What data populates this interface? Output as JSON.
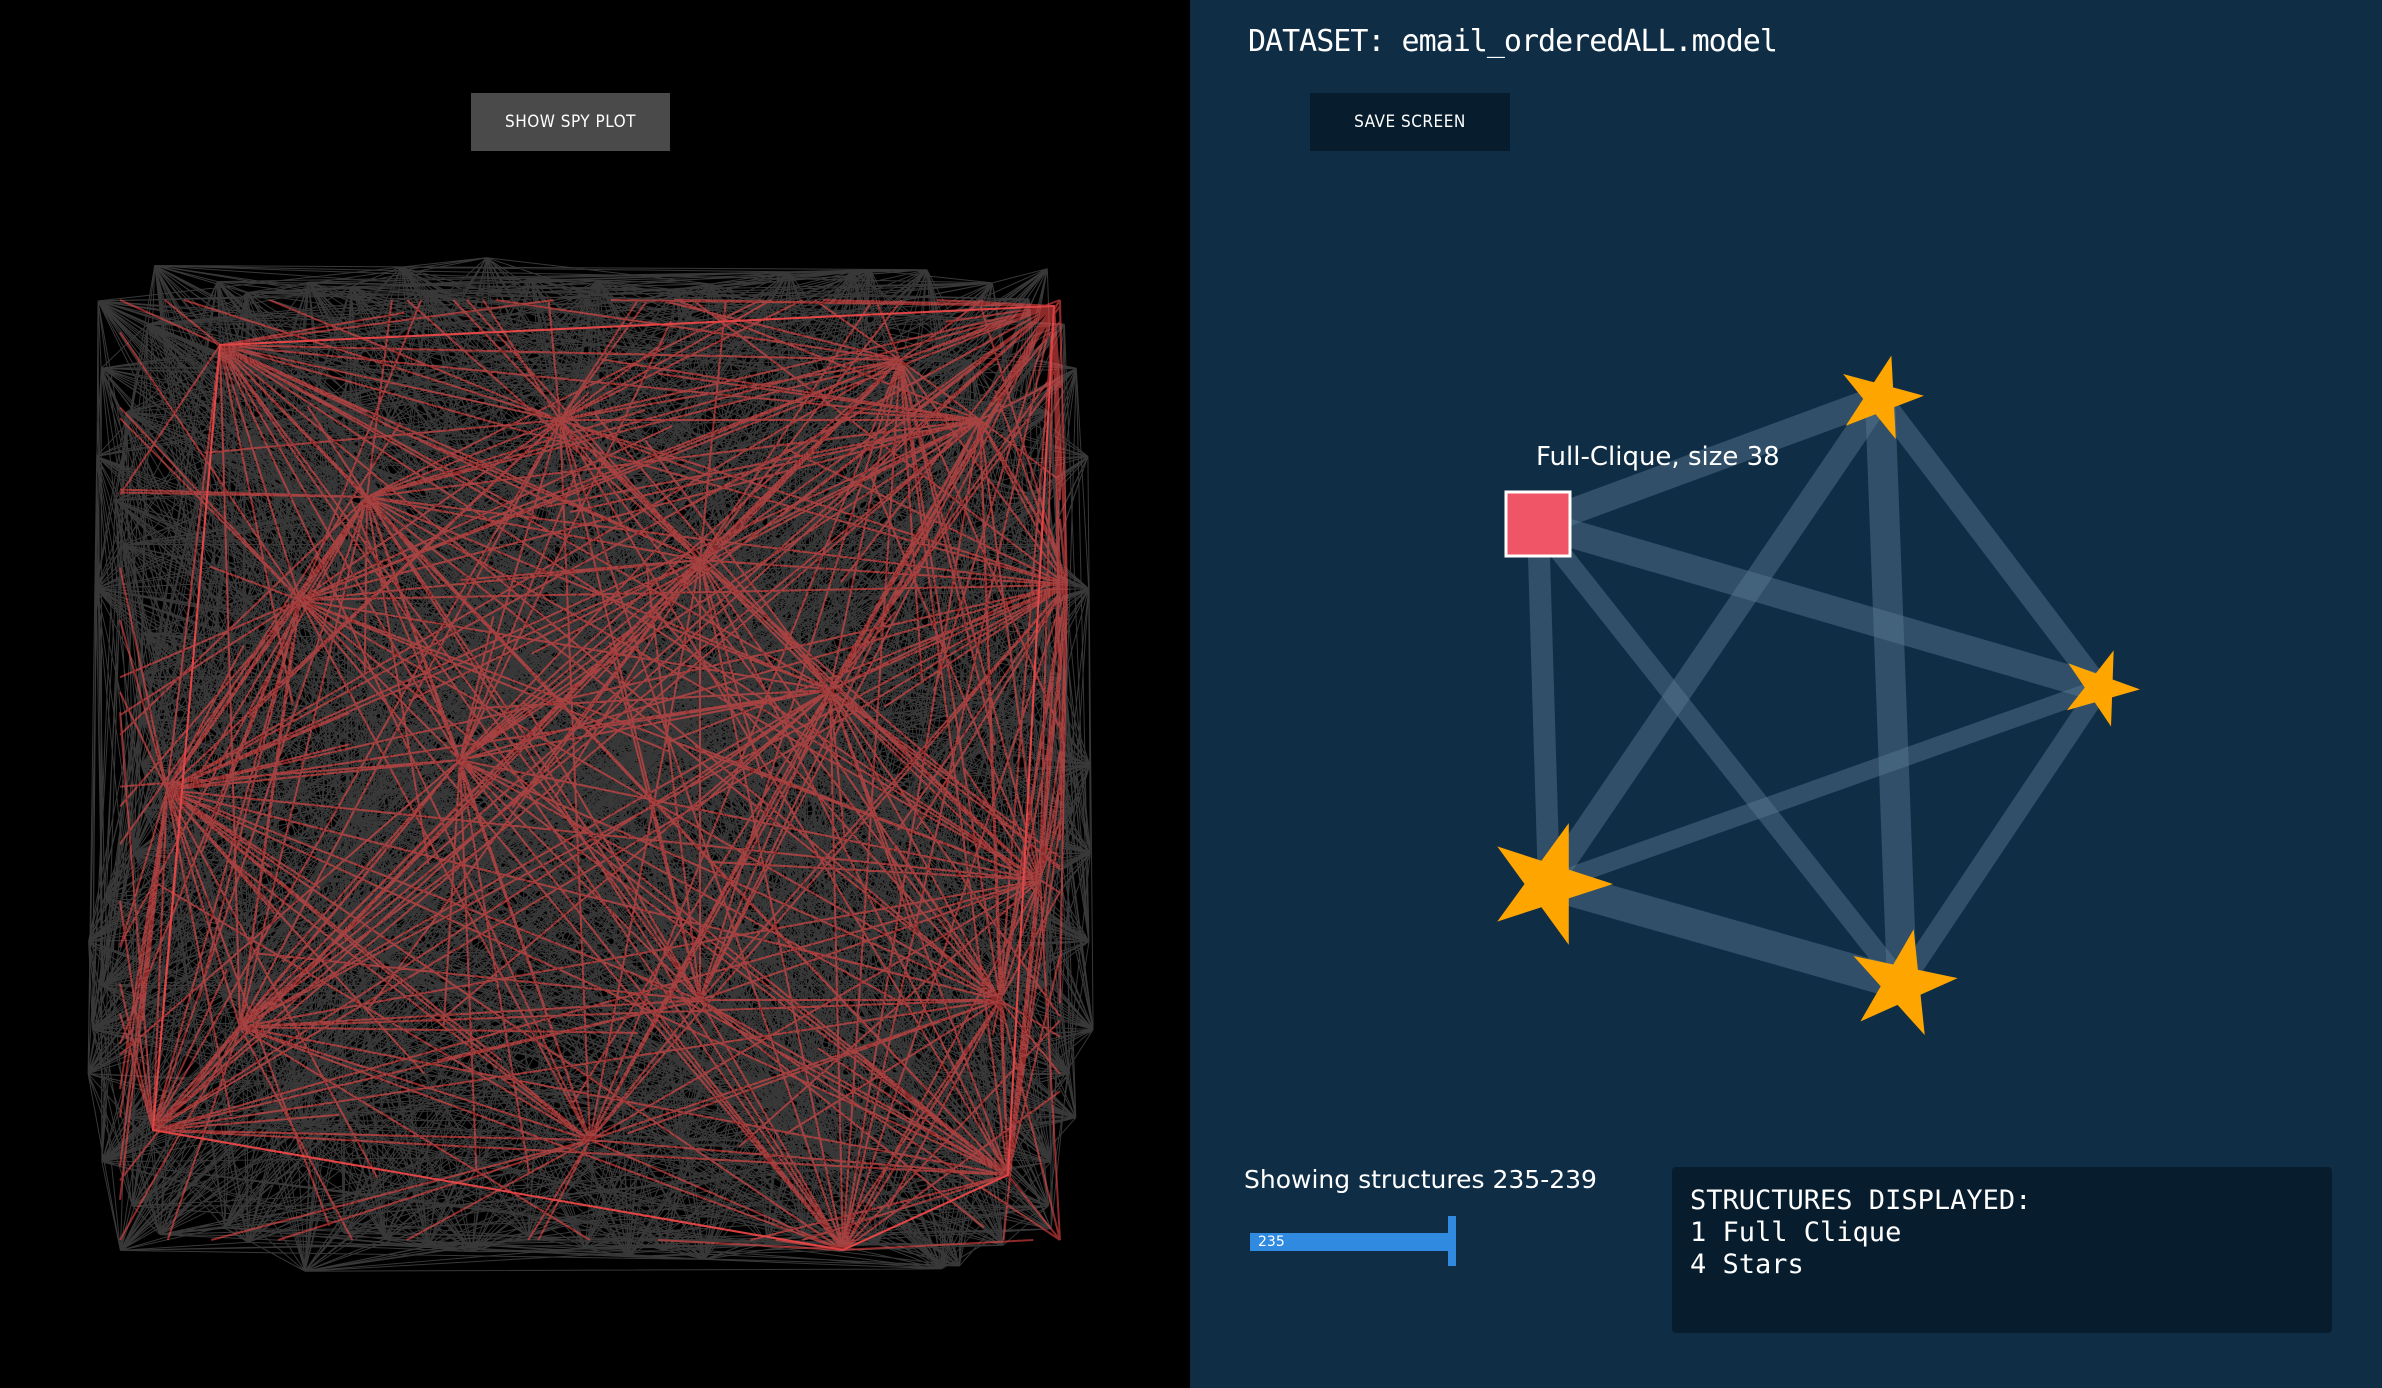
{
  "left": {
    "spy_button_label": "SHOW SPY PLOT"
  },
  "right": {
    "dataset_title": "DATASET: email_orderedALL.model",
    "save_button_label": "SAVE SCREEN",
    "clique_label": "Full-Clique, size 38",
    "showing_label": "Showing structures 235-239",
    "slider_value": "235",
    "summary": {
      "header": "STRUCTURES DISPLAYED:",
      "lines": [
        "1 Full Clique",
        "4 Stars"
      ]
    }
  },
  "colors": {
    "left_background": "#000000",
    "right_background": "#0f2d45",
    "graph_edge_white": "#ffffff",
    "graph_edge_red": "#ff4a4a",
    "clique_fill": "#ef5566",
    "star_fill": "#ffa500",
    "link_color": "#5a7a92",
    "slider": "#2f8ae0"
  },
  "icons": [
    "clique-square-icon",
    "star-icon"
  ]
}
